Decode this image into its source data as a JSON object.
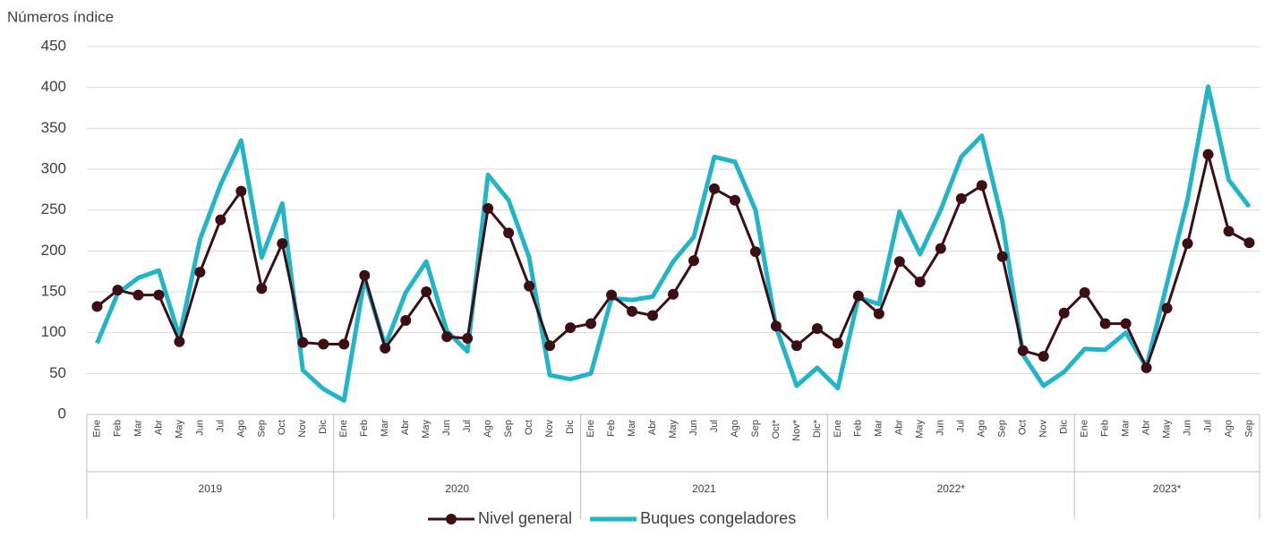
{
  "chart_data": {
    "type": "line",
    "y_label": "Números índice",
    "categories": [
      "Ene",
      "Feb",
      "Mar",
      "Abr",
      "May",
      "Jun",
      "Jul",
      "Ago",
      "Sep",
      "Oct",
      "Nov",
      "Dic",
      "Ene",
      "Feb",
      "Mar",
      "Abr",
      "May",
      "Jun",
      "Jul",
      "Ago",
      "Sep",
      "Oct",
      "Nov",
      "Dic",
      "Ene",
      "Feb",
      "Mar",
      "Abr",
      "May",
      "Jun",
      "Jul",
      "Ago",
      "Sep",
      "Oct*",
      "Nov*",
      "Dic*",
      "Ene",
      "Feb",
      "Mar",
      "Abr",
      "May",
      "Jun",
      "Jul",
      "Ago",
      "Sep",
      "Oct",
      "Nov",
      "Dic",
      "Ene",
      "Feb",
      "Mar",
      "Abr",
      "May",
      "Jun",
      "Jul",
      "Ago",
      "Sep"
    ],
    "x_groups": [
      "2019",
      "2020",
      "2021",
      "2022*",
      "2023*"
    ],
    "series": [
      {
        "name": "Nivel general",
        "color": "#3b0f14",
        "marker": "circle",
        "values": [
          132,
          152,
          146,
          146,
          89,
          174,
          238,
          273,
          154,
          209,
          88,
          86,
          86,
          170,
          81,
          115,
          150,
          95,
          93,
          252,
          222,
          157,
          84,
          106,
          111,
          146,
          126,
          121,
          147,
          188,
          276,
          262,
          199,
          108,
          84,
          105,
          87,
          145,
          123,
          187,
          162,
          203,
          264,
          280,
          193,
          78,
          71,
          124,
          149,
          111,
          111,
          57,
          130,
          209,
          318,
          224,
          210
        ]
      },
      {
        "name": "Buques congeladores",
        "color": "#22b5c8",
        "marker": "none",
        "values": [
          87,
          148,
          167,
          176,
          95,
          214,
          281,
          335,
          192,
          258,
          54,
          31,
          17,
          166,
          84,
          149,
          187,
          102,
          77,
          293,
          262,
          192,
          48,
          43,
          50,
          142,
          140,
          144,
          187,
          217,
          315,
          309,
          250,
          107,
          35,
          57,
          32,
          143,
          135,
          248,
          196,
          250,
          315,
          341,
          236,
          73,
          35,
          52,
          80,
          79,
          100,
          58,
          160,
          263,
          401,
          287,
          254
        ]
      }
    ],
    "ylim": [
      0,
      450
    ],
    "yticks": [
      0,
      50,
      100,
      150,
      200,
      250,
      300,
      350,
      400,
      450
    ],
    "grid": true
  }
}
